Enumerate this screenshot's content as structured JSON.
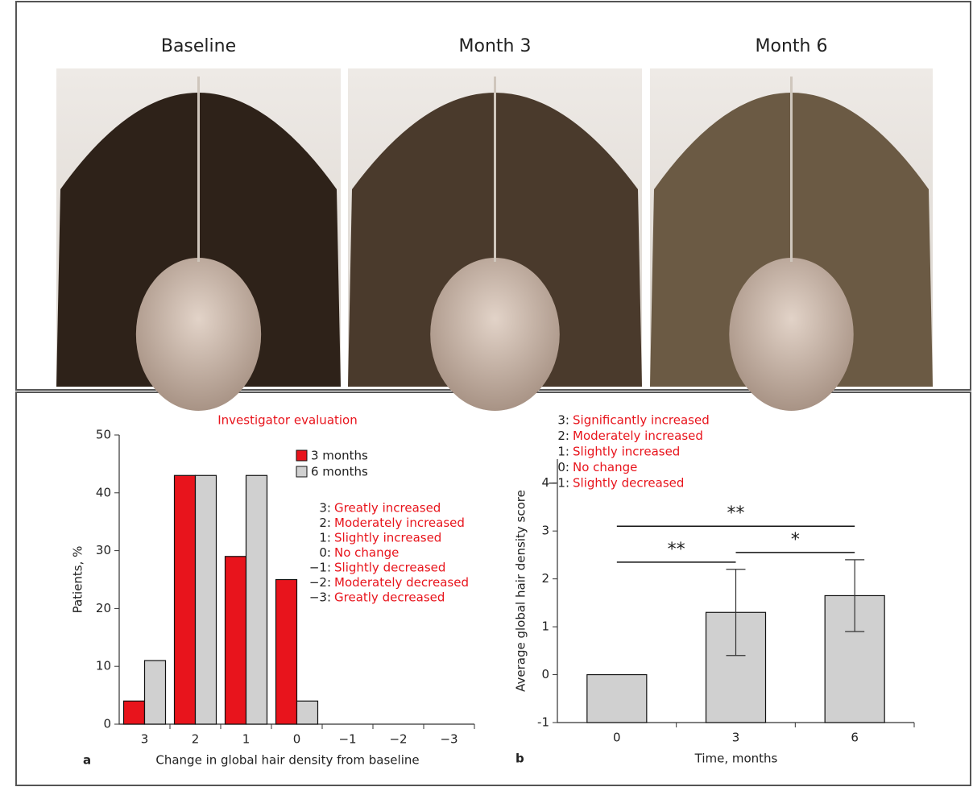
{
  "photo_panel": {
    "labels": [
      "Baseline",
      "Month 3",
      "Month 6"
    ]
  },
  "chart_data": [
    {
      "type": "bar",
      "title": "Investigator evaluation",
      "panel": "a",
      "x_label": "Change in global hair density from baseline",
      "y_label": "Patients, %",
      "categories": [
        "3",
        "2",
        "1",
        "0",
        "−1",
        "−2",
        "−3"
      ],
      "series": [
        {
          "name": "3 months",
          "color": "#e8141c",
          "values": [
            4,
            43,
            29,
            25,
            null,
            null,
            null
          ]
        },
        {
          "name": "6 months",
          "color": "#d0d0d0",
          "values": [
            11,
            43,
            43,
            4,
            null,
            null,
            null
          ]
        }
      ],
      "ylim": [
        0,
        50
      ],
      "yticks": [
        0,
        10,
        20,
        30,
        40,
        50
      ],
      "scale_legend": [
        {
          "code": "3:",
          "text": "Greatly increased"
        },
        {
          "code": "2:",
          "text": "Moderately increased"
        },
        {
          "code": "1:",
          "text": "Slightly increased"
        },
        {
          "code": "0:",
          "text": "No change"
        },
        {
          "code": "−1:",
          "text": "Slightly decreased"
        },
        {
          "code": "−2:",
          "text": "Moderately decreased"
        },
        {
          "code": "−3:",
          "text": "Greatly decreased"
        }
      ]
    },
    {
      "type": "bar",
      "panel": "b",
      "x_label": "Time, months",
      "y_label": "Average global hair density score",
      "categories": [
        "0",
        "3",
        "6"
      ],
      "series": [
        {
          "color": "#d0d0d0",
          "values": [
            0,
            1.3,
            1.65
          ],
          "errors": [
            null,
            0.9,
            0.75
          ]
        }
      ],
      "ylim": [
        -1,
        4.5
      ],
      "yticks": [
        -1,
        0,
        1,
        2,
        3,
        4
      ],
      "scale_legend": [
        {
          "code": "3:",
          "text": "Significantly increased"
        },
        {
          "code": "2:",
          "text": "Moderately increased"
        },
        {
          "code": "1:",
          "text": "Slightly increased"
        },
        {
          "code": "0:",
          "text": "No change"
        },
        {
          "code": "−1:",
          "text": "Slightly decreased"
        }
      ],
      "annotations": [
        {
          "label": "**",
          "from": "0",
          "to": "6",
          "y": 3.1
        },
        {
          "label": "**",
          "from": "0",
          "to": "3",
          "y": 2.35
        },
        {
          "label": "*",
          "from": "3",
          "to": "6",
          "y": 2.55
        }
      ]
    }
  ]
}
